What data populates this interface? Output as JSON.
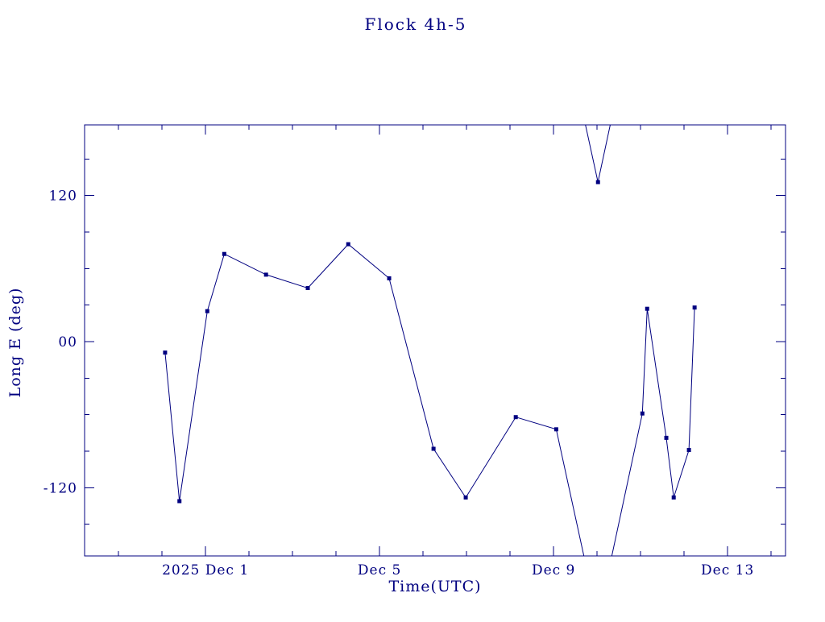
{
  "chart_data": {
    "type": "line",
    "title": "Flock 4h-5",
    "xlabel": "Time(UTC)",
    "ylabel": "Long E (deg)",
    "line_color": "#000080",
    "background": "#ffffff",
    "marker": "filled-square",
    "grid": false,
    "legend": "none",
    "wrap_threshold": 180,
    "x_unit": "days since 2025 Dec 1 00:00 UTC",
    "xlim": [
      -2.78,
      13.33
    ],
    "ylim": [
      -176,
      178
    ],
    "xticks": {
      "minor_step": 1,
      "major": [
        {
          "value": 0,
          "label": "2025 Dec 1"
        },
        {
          "value": 4,
          "label": "Dec 5"
        },
        {
          "value": 8,
          "label": "Dec 9"
        },
        {
          "value": 12,
          "label": "Dec 13"
        }
      ]
    },
    "yticks": {
      "minor_step": 30,
      "major": [
        {
          "value": 120,
          "label": "120"
        },
        {
          "value": 0,
          "label": "00"
        },
        {
          "value": -120,
          "label": "-120"
        }
      ]
    },
    "points": [
      [
        -0.93,
        -9
      ],
      [
        -0.6,
        -131
      ],
      [
        0.04,
        25
      ],
      [
        0.43,
        72
      ],
      [
        1.39,
        55
      ],
      [
        2.35,
        44
      ],
      [
        3.28,
        80
      ],
      [
        4.22,
        52
      ],
      [
        5.24,
        -88
      ],
      [
        5.98,
        -128
      ],
      [
        7.13,
        -62
      ],
      [
        8.06,
        -72
      ],
      [
        9.02,
        131
      ],
      [
        10.04,
        -59
      ],
      [
        10.15,
        27
      ],
      [
        10.59,
        -79
      ],
      [
        10.76,
        -128
      ],
      [
        11.11,
        -89
      ],
      [
        11.24,
        28
      ]
    ]
  }
}
